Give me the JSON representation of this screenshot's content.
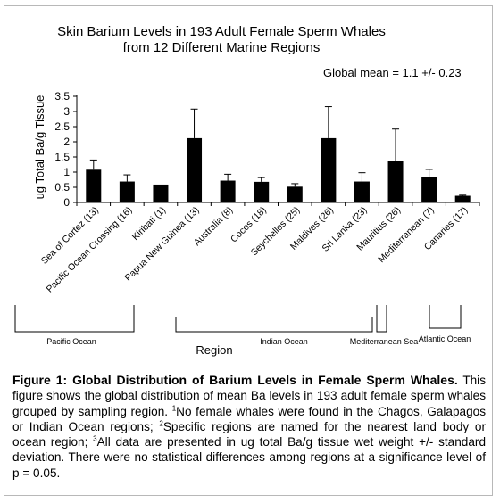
{
  "chart_data": {
    "type": "bar",
    "title_line1": "Skin Barium Levels in 193 Adult Female Sperm Whales",
    "title_line2": "from 12 Different Marine Regions",
    "annotation": "Global mean = 1.1 +/- 0.23",
    "xlabel": "Region",
    "ylabel": "ug Total Ba/g Tissue",
    "ylim": [
      0,
      3.5
    ],
    "yticks": [
      "0",
      "0.5",
      "1",
      "1.5",
      "2",
      "2.5",
      "3",
      "3.5"
    ],
    "categories": [
      "Sea of Cortez (13)",
      "Pacific Ocean Crossing (16)",
      "Kiribati (1)",
      "Papua New Guinea (13)",
      "Australia (8)",
      "Cocos (18)",
      "Seychelles (25)",
      "Maldives (26)",
      "Sri Lanka (23)",
      "Mauritius (26)",
      "Mediterranean (7)",
      "Canaries (17)"
    ],
    "values": [
      1.08,
      0.69,
      0.59,
      2.12,
      0.72,
      0.68,
      0.52,
      2.12,
      0.69,
      1.36,
      0.83,
      0.22
    ],
    "errors": [
      0.32,
      0.22,
      0,
      0.96,
      0.21,
      0.14,
      0.1,
      1.04,
      0.29,
      1.06,
      0.26,
      0.02
    ],
    "grid": false,
    "legend": "none",
    "bar_color": "#000000",
    "groups": [
      {
        "label": "Pacific Ocean",
        "from": 0,
        "to": 1
      },
      {
        "label": "Indian Ocean",
        "from": 3,
        "to": 8
      },
      {
        "label": "Mediterranean Sea",
        "from": 10,
        "to": 10
      },
      {
        "label": "Atlantic Ocean",
        "from": 11,
        "to": 11
      }
    ]
  },
  "caption": {
    "title": "Figure 1: Global Distribution of Barium Levels in Female Sperm Whales.",
    "text_a": "This figure shows the global distribution of mean Ba levels in 193 adult female sperm whales grouped by sampling region. ",
    "sup1": "1",
    "text_b": "No female whales were found in the Chagos, Galapagos or Indian Ocean regions; ",
    "sup2": "2",
    "text_c": "Specific regions are named for the nearest land body or ocean region; ",
    "sup3": "3",
    "text_d": "All data are presented in ug total Ba/g tissue wet weight +/- standard deviation. There were no statistical differences among regions at a significance level of p = 0.05."
  }
}
